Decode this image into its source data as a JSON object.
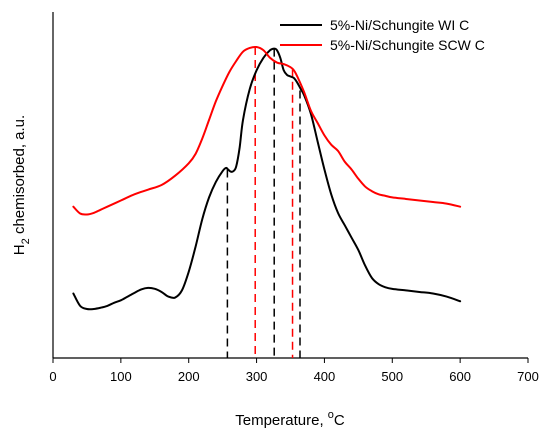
{
  "chart_data": {
    "type": "line",
    "xlabel": "Temperature, ",
    "xlabel_sup": "o",
    "xlabel_unit": "C",
    "ylabel_main": "H",
    "ylabel_sub": "2",
    "ylabel_rest": " chemisorbed, a.u.",
    "xlim": [
      0,
      700
    ],
    "x_ticks": [
      0,
      100,
      200,
      300,
      400,
      500,
      600,
      700
    ],
    "ylim": [
      0,
      1
    ],
    "y_tick_labels": false,
    "grid": false,
    "legend_position": "top-right",
    "series": [
      {
        "name": "5%-Ni/Schungite WI C",
        "color": "#000000",
        "x": [
          30,
          40,
          50,
          60,
          70,
          80,
          90,
          100,
          110,
          120,
          130,
          140,
          150,
          160,
          170,
          180,
          190,
          200,
          210,
          220,
          230,
          240,
          250,
          255,
          258,
          262,
          266,
          270,
          275,
          280,
          290,
          300,
          310,
          320,
          326,
          330,
          335,
          340,
          345,
          350,
          355,
          360,
          365,
          370,
          380,
          390,
          400,
          410,
          420,
          430,
          440,
          450,
          460,
          470,
          480,
          490,
          500,
          520,
          540,
          560,
          580,
          600
        ],
        "y": [
          0.15,
          0.11,
          0.1,
          0.1,
          0.104,
          0.11,
          0.12,
          0.128,
          0.14,
          0.152,
          0.163,
          0.168,
          0.165,
          0.155,
          0.14,
          0.137,
          0.16,
          0.22,
          0.3,
          0.39,
          0.46,
          0.51,
          0.545,
          0.555,
          0.55,
          0.543,
          0.545,
          0.56,
          0.62,
          0.71,
          0.81,
          0.87,
          0.91,
          0.935,
          0.94,
          0.935,
          0.91,
          0.87,
          0.855,
          0.85,
          0.845,
          0.83,
          0.81,
          0.79,
          0.73,
          0.64,
          0.55,
          0.47,
          0.41,
          0.37,
          0.33,
          0.29,
          0.24,
          0.2,
          0.18,
          0.17,
          0.165,
          0.16,
          0.155,
          0.15,
          0.14,
          0.125
        ]
      },
      {
        "name": "5%-Ni/Schungite SCW C",
        "color": "#ff0000",
        "x": [
          30,
          40,
          50,
          60,
          70,
          80,
          100,
          120,
          140,
          160,
          180,
          200,
          210,
          220,
          230,
          240,
          250,
          260,
          270,
          280,
          290,
          300,
          310,
          320,
          330,
          340,
          350,
          355,
          360,
          370,
          380,
          390,
          400,
          410,
          420,
          430,
          440,
          450,
          460,
          470,
          480,
          490,
          500,
          520,
          540,
          560,
          580,
          600
        ],
        "y": [
          0.43,
          0.408,
          0.405,
          0.41,
          0.42,
          0.43,
          0.45,
          0.47,
          0.485,
          0.5,
          0.53,
          0.57,
          0.6,
          0.65,
          0.71,
          0.77,
          0.82,
          0.865,
          0.9,
          0.93,
          0.942,
          0.945,
          0.935,
          0.91,
          0.895,
          0.89,
          0.88,
          0.87,
          0.85,
          0.8,
          0.74,
          0.7,
          0.66,
          0.63,
          0.61,
          0.575,
          0.55,
          0.52,
          0.495,
          0.48,
          0.47,
          0.465,
          0.46,
          0.455,
          0.45,
          0.445,
          0.44,
          0.43
        ]
      }
    ],
    "peak_markers": [
      {
        "series": "5%-Ni/Schungite WI C",
        "x": 257,
        "y": 0.55
      },
      {
        "series": "5%-Ni/Schungite WI C",
        "x": 326,
        "y": 0.94
      },
      {
        "series": "5%-Ni/Schungite WI C",
        "x": 364,
        "y": 0.805
      },
      {
        "series": "5%-Ni/Schungite SCW C",
        "x": 298,
        "y": 0.945
      },
      {
        "series": "5%-Ni/Schungite SCW C",
        "x": 353,
        "y": 0.875
      }
    ]
  }
}
